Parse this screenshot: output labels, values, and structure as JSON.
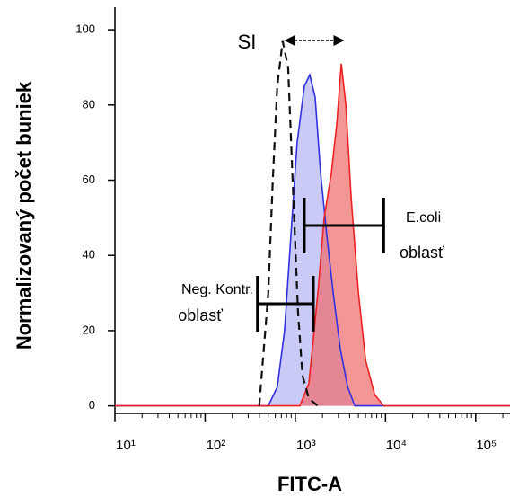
{
  "chart_data": {
    "type": "line",
    "x_label": "FITC-A",
    "y_label": "Normalizovaný počet buniek",
    "xscale": "log",
    "xlim": [
      10,
      240000
    ],
    "ylim": [
      -2,
      106
    ],
    "xticks": [
      {
        "value": 10,
        "label": "10¹"
      },
      {
        "value": 100,
        "label": "10²"
      },
      {
        "value": 1000,
        "label": "10³"
      },
      {
        "value": 10000,
        "label": "10⁴"
      },
      {
        "value": 100000,
        "label": "10⁵"
      }
    ],
    "yticks": [
      0,
      20,
      40,
      60,
      80,
      100
    ],
    "annotations": [
      "SI"
    ],
    "gates": [
      {
        "lines": [
          "Neg. Kontr.",
          "oblasť"
        ],
        "range": [
          380,
          1585
        ]
      },
      {
        "lines": [
          "E.coli",
          "oblasť"
        ],
        "range": [
          1259,
          9550
        ]
      }
    ],
    "series": [
      {
        "color": "#3030e0",
        "fill": "#b8b8f4",
        "x": [
          10,
          501,
          631,
          759,
          891,
          1047,
          1259,
          1445,
          1660,
          1905,
          2239,
          2630,
          3162,
          3802,
          4571,
          240000
        ],
        "values": [
          0,
          0,
          5,
          20,
          45,
          70,
          85,
          88,
          82,
          62,
          45,
          30,
          15,
          5,
          0,
          0
        ]
      },
      {
        "color": "#ee2222",
        "fill": "#f06a6a",
        "x": [
          10,
          1122,
          1413,
          1778,
          2089,
          2512,
          2884,
          3236,
          3631,
          4169,
          5012,
          6026,
          7586,
          9550,
          240000
        ],
        "values": [
          0,
          0,
          6,
          30,
          50,
          62,
          75,
          91,
          80,
          55,
          30,
          12,
          3,
          0,
          0
        ]
      },
      {
        "color": "#111111",
        "dash": true,
        "x": [
          398,
          501,
          562,
          631,
          724,
          832,
          933,
          1072,
          1202,
          1413,
          1778
        ],
        "values": [
          0,
          30,
          60,
          85,
          97,
          90,
          60,
          25,
          8,
          2,
          0
        ]
      }
    ]
  }
}
